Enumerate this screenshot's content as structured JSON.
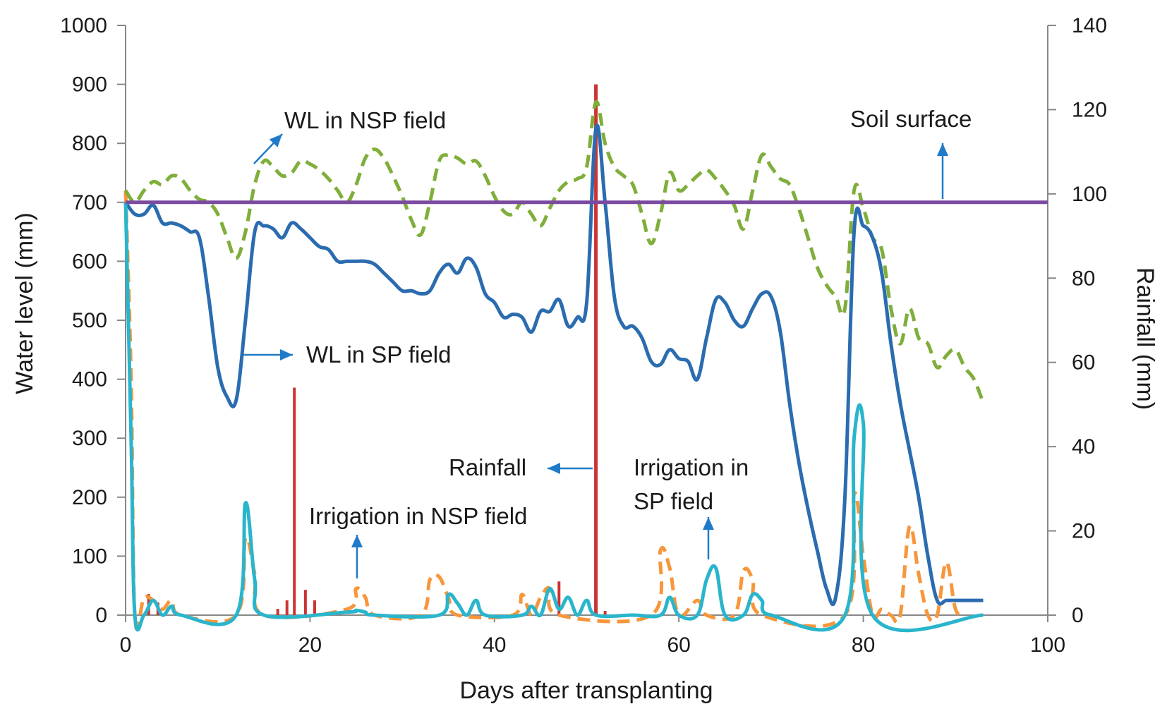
{
  "chart_data": {
    "type": "line",
    "title": "",
    "xlabel": "Days after transplanting",
    "ylabel": "Water level (mm)",
    "y2label": "Rainfall (mm)",
    "xlim": [
      0,
      100
    ],
    "ylim": [
      0,
      1000
    ],
    "y2lim": [
      0,
      140
    ],
    "x_ticks": [
      0,
      20,
      40,
      60,
      80,
      100
    ],
    "y_ticks": [
      0,
      100,
      200,
      300,
      400,
      500,
      600,
      700,
      800,
      900,
      1000
    ],
    "y2_ticks": [
      0,
      20,
      40,
      60,
      80,
      100,
      120,
      140
    ],
    "grid": false,
    "series": [
      {
        "name": "WL in NSP field",
        "color": "#7fae3a",
        "style": "dashed",
        "axis": "left",
        "points": [
          [
            0,
            720
          ],
          [
            1,
            700
          ],
          [
            2,
            720
          ],
          [
            3,
            735
          ],
          [
            4,
            730
          ],
          [
            5,
            745
          ],
          [
            6,
            740
          ],
          [
            7,
            720
          ],
          [
            8,
            705
          ],
          [
            9,
            700
          ],
          [
            10,
            680
          ],
          [
            11,
            640
          ],
          [
            12,
            605
          ],
          [
            13,
            650
          ],
          [
            14,
            730
          ],
          [
            15,
            770
          ],
          [
            16,
            760
          ],
          [
            17,
            745
          ],
          [
            18,
            750
          ],
          [
            19,
            770
          ],
          [
            20,
            765
          ],
          [
            21,
            755
          ],
          [
            22,
            740
          ],
          [
            23,
            720
          ],
          [
            24,
            700
          ],
          [
            25,
            730
          ],
          [
            26,
            775
          ],
          [
            27,
            790
          ],
          [
            28,
            775
          ],
          [
            29,
            745
          ],
          [
            30,
            710
          ],
          [
            31,
            670
          ],
          [
            32,
            645
          ],
          [
            33,
            700
          ],
          [
            34,
            770
          ],
          [
            35,
            780
          ],
          [
            36,
            775
          ],
          [
            37,
            765
          ],
          [
            38,
            770
          ],
          [
            39,
            745
          ],
          [
            40,
            710
          ],
          [
            41,
            685
          ],
          [
            42,
            680
          ],
          [
            43,
            700
          ],
          [
            44,
            680
          ],
          [
            45,
            660
          ],
          [
            46,
            690
          ],
          [
            47,
            720
          ],
          [
            48,
            735
          ],
          [
            49,
            740
          ],
          [
            50,
            760
          ],
          [
            51,
            870
          ],
          [
            52,
            800
          ],
          [
            53,
            760
          ],
          [
            54,
            745
          ],
          [
            55,
            730
          ],
          [
            56,
            680
          ],
          [
            57,
            630
          ],
          [
            58,
            680
          ],
          [
            59,
            750
          ],
          [
            60,
            720
          ],
          [
            61,
            730
          ],
          [
            62,
            745
          ],
          [
            63,
            755
          ],
          [
            64,
            740
          ],
          [
            65,
            720
          ],
          [
            66,
            695
          ],
          [
            67,
            655
          ],
          [
            68,
            720
          ],
          [
            69,
            780
          ],
          [
            70,
            760
          ],
          [
            71,
            740
          ],
          [
            72,
            730
          ],
          [
            73,
            690
          ],
          [
            74,
            640
          ],
          [
            75,
            590
          ],
          [
            76,
            560
          ],
          [
            77,
            540
          ],
          [
            78,
            520
          ],
          [
            79,
            720
          ],
          [
            80,
            690
          ],
          [
            81,
            640
          ],
          [
            82,
            620
          ],
          [
            83,
            520
          ],
          [
            84,
            460
          ],
          [
            85,
            520
          ],
          [
            86,
            470
          ],
          [
            87,
            460
          ],
          [
            88,
            420
          ],
          [
            89,
            440
          ],
          [
            90,
            450
          ],
          [
            91,
            420
          ],
          [
            92,
            400
          ],
          [
            93,
            360
          ]
        ]
      },
      {
        "name": "WL in SP field",
        "color": "#2b6cb0",
        "style": "solid",
        "axis": "left",
        "points": [
          [
            0,
            700
          ],
          [
            1,
            680
          ],
          [
            2,
            680
          ],
          [
            3,
            695
          ],
          [
            4,
            665
          ],
          [
            5,
            665
          ],
          [
            6,
            660
          ],
          [
            7,
            650
          ],
          [
            8,
            640
          ],
          [
            9,
            540
          ],
          [
            10,
            420
          ],
          [
            11,
            370
          ],
          [
            12,
            365
          ],
          [
            13,
            500
          ],
          [
            14,
            650
          ],
          [
            15,
            660
          ],
          [
            16,
            655
          ],
          [
            17,
            640
          ],
          [
            18,
            665
          ],
          [
            19,
            655
          ],
          [
            20,
            640
          ],
          [
            21,
            625
          ],
          [
            22,
            620
          ],
          [
            23,
            600
          ],
          [
            24,
            600
          ],
          [
            25,
            600
          ],
          [
            26,
            600
          ],
          [
            27,
            595
          ],
          [
            28,
            580
          ],
          [
            29,
            565
          ],
          [
            30,
            550
          ],
          [
            31,
            550
          ],
          [
            32,
            545
          ],
          [
            33,
            550
          ],
          [
            34,
            580
          ],
          [
            35,
            595
          ],
          [
            36,
            580
          ],
          [
            37,
            605
          ],
          [
            38,
            590
          ],
          [
            39,
            545
          ],
          [
            40,
            530
          ],
          [
            41,
            505
          ],
          [
            42,
            510
          ],
          [
            43,
            505
          ],
          [
            44,
            480
          ],
          [
            45,
            515
          ],
          [
            46,
            515
          ],
          [
            47,
            535
          ],
          [
            48,
            490
          ],
          [
            49,
            505
          ],
          [
            50,
            530
          ],
          [
            51,
            825
          ],
          [
            52,
            700
          ],
          [
            53,
            540
          ],
          [
            54,
            490
          ],
          [
            55,
            490
          ],
          [
            56,
            470
          ],
          [
            57,
            430
          ],
          [
            58,
            425
          ],
          [
            59,
            450
          ],
          [
            60,
            435
          ],
          [
            61,
            430
          ],
          [
            62,
            400
          ],
          [
            63,
            470
          ],
          [
            64,
            535
          ],
          [
            65,
            530
          ],
          [
            66,
            500
          ],
          [
            67,
            490
          ],
          [
            68,
            520
          ],
          [
            69,
            545
          ],
          [
            70,
            540
          ],
          [
            71,
            480
          ],
          [
            72,
            360
          ],
          [
            73,
            260
          ],
          [
            74,
            180
          ],
          [
            75,
            110
          ],
          [
            76,
            45
          ],
          [
            77,
            30
          ],
          [
            78,
            200
          ],
          [
            79,
            650
          ],
          [
            80,
            660
          ],
          [
            81,
            640
          ],
          [
            82,
            580
          ],
          [
            83,
            460
          ],
          [
            84,
            360
          ],
          [
            85,
            280
          ],
          [
            86,
            200
          ],
          [
            87,
            100
          ],
          [
            88,
            25
          ],
          [
            89,
            25
          ],
          [
            90,
            25
          ],
          [
            91,
            25
          ],
          [
            92,
            25
          ],
          [
            93,
            25
          ]
        ]
      },
      {
        "name": "Irrigation in NSP field",
        "color": "#f7963a",
        "style": "dashed",
        "axis": "left",
        "points": [
          [
            0,
            720
          ],
          [
            0.6,
            400
          ],
          [
            1,
            0
          ],
          [
            2,
            30
          ],
          [
            3,
            25
          ],
          [
            4,
            10
          ],
          [
            5,
            25
          ],
          [
            6,
            0
          ],
          [
            12,
            0
          ],
          [
            13,
            130
          ],
          [
            14,
            70
          ],
          [
            15,
            0
          ],
          [
            24,
            10
          ],
          [
            25,
            45
          ],
          [
            26,
            30
          ],
          [
            27,
            0
          ],
          [
            32,
            0
          ],
          [
            33,
            60
          ],
          [
            34,
            65
          ],
          [
            35,
            30
          ],
          [
            36,
            0
          ],
          [
            42,
            0
          ],
          [
            43,
            35
          ],
          [
            44,
            0
          ],
          [
            45,
            30
          ],
          [
            46,
            45
          ],
          [
            47,
            0
          ],
          [
            57,
            0
          ],
          [
            58,
            110
          ],
          [
            59,
            80
          ],
          [
            60,
            0
          ],
          [
            62,
            25
          ],
          [
            63,
            0
          ],
          [
            66,
            0
          ],
          [
            67,
            75
          ],
          [
            68,
            60
          ],
          [
            69,
            0
          ],
          [
            78,
            0
          ],
          [
            79,
            205
          ],
          [
            80,
            100
          ],
          [
            81,
            0
          ],
          [
            82,
            10
          ],
          [
            83,
            0
          ],
          [
            84,
            0
          ],
          [
            85,
            150
          ],
          [
            86,
            70
          ],
          [
            87,
            0
          ],
          [
            88,
            0
          ],
          [
            89,
            90
          ],
          [
            90,
            10
          ],
          [
            91,
            0
          ]
        ]
      },
      {
        "name": "Irrigation in SP field",
        "color": "#29b5cc",
        "style": "solid",
        "axis": "left",
        "points": [
          [
            0,
            700
          ],
          [
            0.6,
            300
          ],
          [
            1,
            0
          ],
          [
            2,
            0
          ],
          [
            3,
            25
          ],
          [
            4,
            0
          ],
          [
            5,
            15
          ],
          [
            6,
            0
          ],
          [
            12,
            0
          ],
          [
            13,
            190
          ],
          [
            14,
            60
          ],
          [
            15,
            0
          ],
          [
            24,
            5
          ],
          [
            25,
            8
          ],
          [
            26,
            5
          ],
          [
            27,
            0
          ],
          [
            34,
            0
          ],
          [
            35,
            35
          ],
          [
            36,
            20
          ],
          [
            37,
            0
          ],
          [
            38,
            25
          ],
          [
            39,
            0
          ],
          [
            43,
            0
          ],
          [
            44,
            15
          ],
          [
            45,
            0
          ],
          [
            46,
            45
          ],
          [
            47,
            10
          ],
          [
            48,
            30
          ],
          [
            49,
            0
          ],
          [
            50,
            25
          ],
          [
            51,
            0
          ],
          [
            55,
            0
          ],
          [
            58,
            0
          ],
          [
            59,
            30
          ],
          [
            60,
            0
          ],
          [
            62,
            0
          ],
          [
            63,
            60
          ],
          [
            64,
            80
          ],
          [
            65,
            0
          ],
          [
            67,
            0
          ],
          [
            68,
            35
          ],
          [
            69,
            25
          ],
          [
            70,
            0
          ],
          [
            78,
            0
          ],
          [
            79,
            300
          ],
          [
            80,
            325
          ],
          [
            81,
            0
          ],
          [
            93,
            0
          ]
        ]
      },
      {
        "name": "Soil surface",
        "color": "#7b4aa0",
        "style": "solid",
        "axis": "left",
        "points": [
          [
            0,
            700
          ],
          [
            100,
            700
          ]
        ]
      }
    ],
    "rainfall": {
      "name": "Rainfall",
      "color": "#cc3333",
      "axis": "right",
      "bars": [
        [
          2.5,
          5
        ],
        [
          3.5,
          3
        ],
        [
          16.5,
          1.5
        ],
        [
          17.5,
          3.5
        ],
        [
          18.3,
          54
        ],
        [
          19.5,
          6
        ],
        [
          20.5,
          3.5
        ],
        [
          47,
          8
        ],
        [
          51,
          126
        ],
        [
          52,
          1
        ]
      ]
    },
    "annotations": [
      {
        "text": "WL in NSP field",
        "arrow": "up-right"
      },
      {
        "text": "Soil surface",
        "arrow": "up"
      },
      {
        "text": "WL in SP field",
        "arrow": "right"
      },
      {
        "text": "Rainfall",
        "arrow": "left"
      },
      {
        "text": "Irrigation in",
        "text2": "SP field",
        "arrow": "up"
      },
      {
        "text": "Irrigation in NSP field",
        "arrow": "up"
      }
    ],
    "annotation_color": "#1f7bc8"
  }
}
